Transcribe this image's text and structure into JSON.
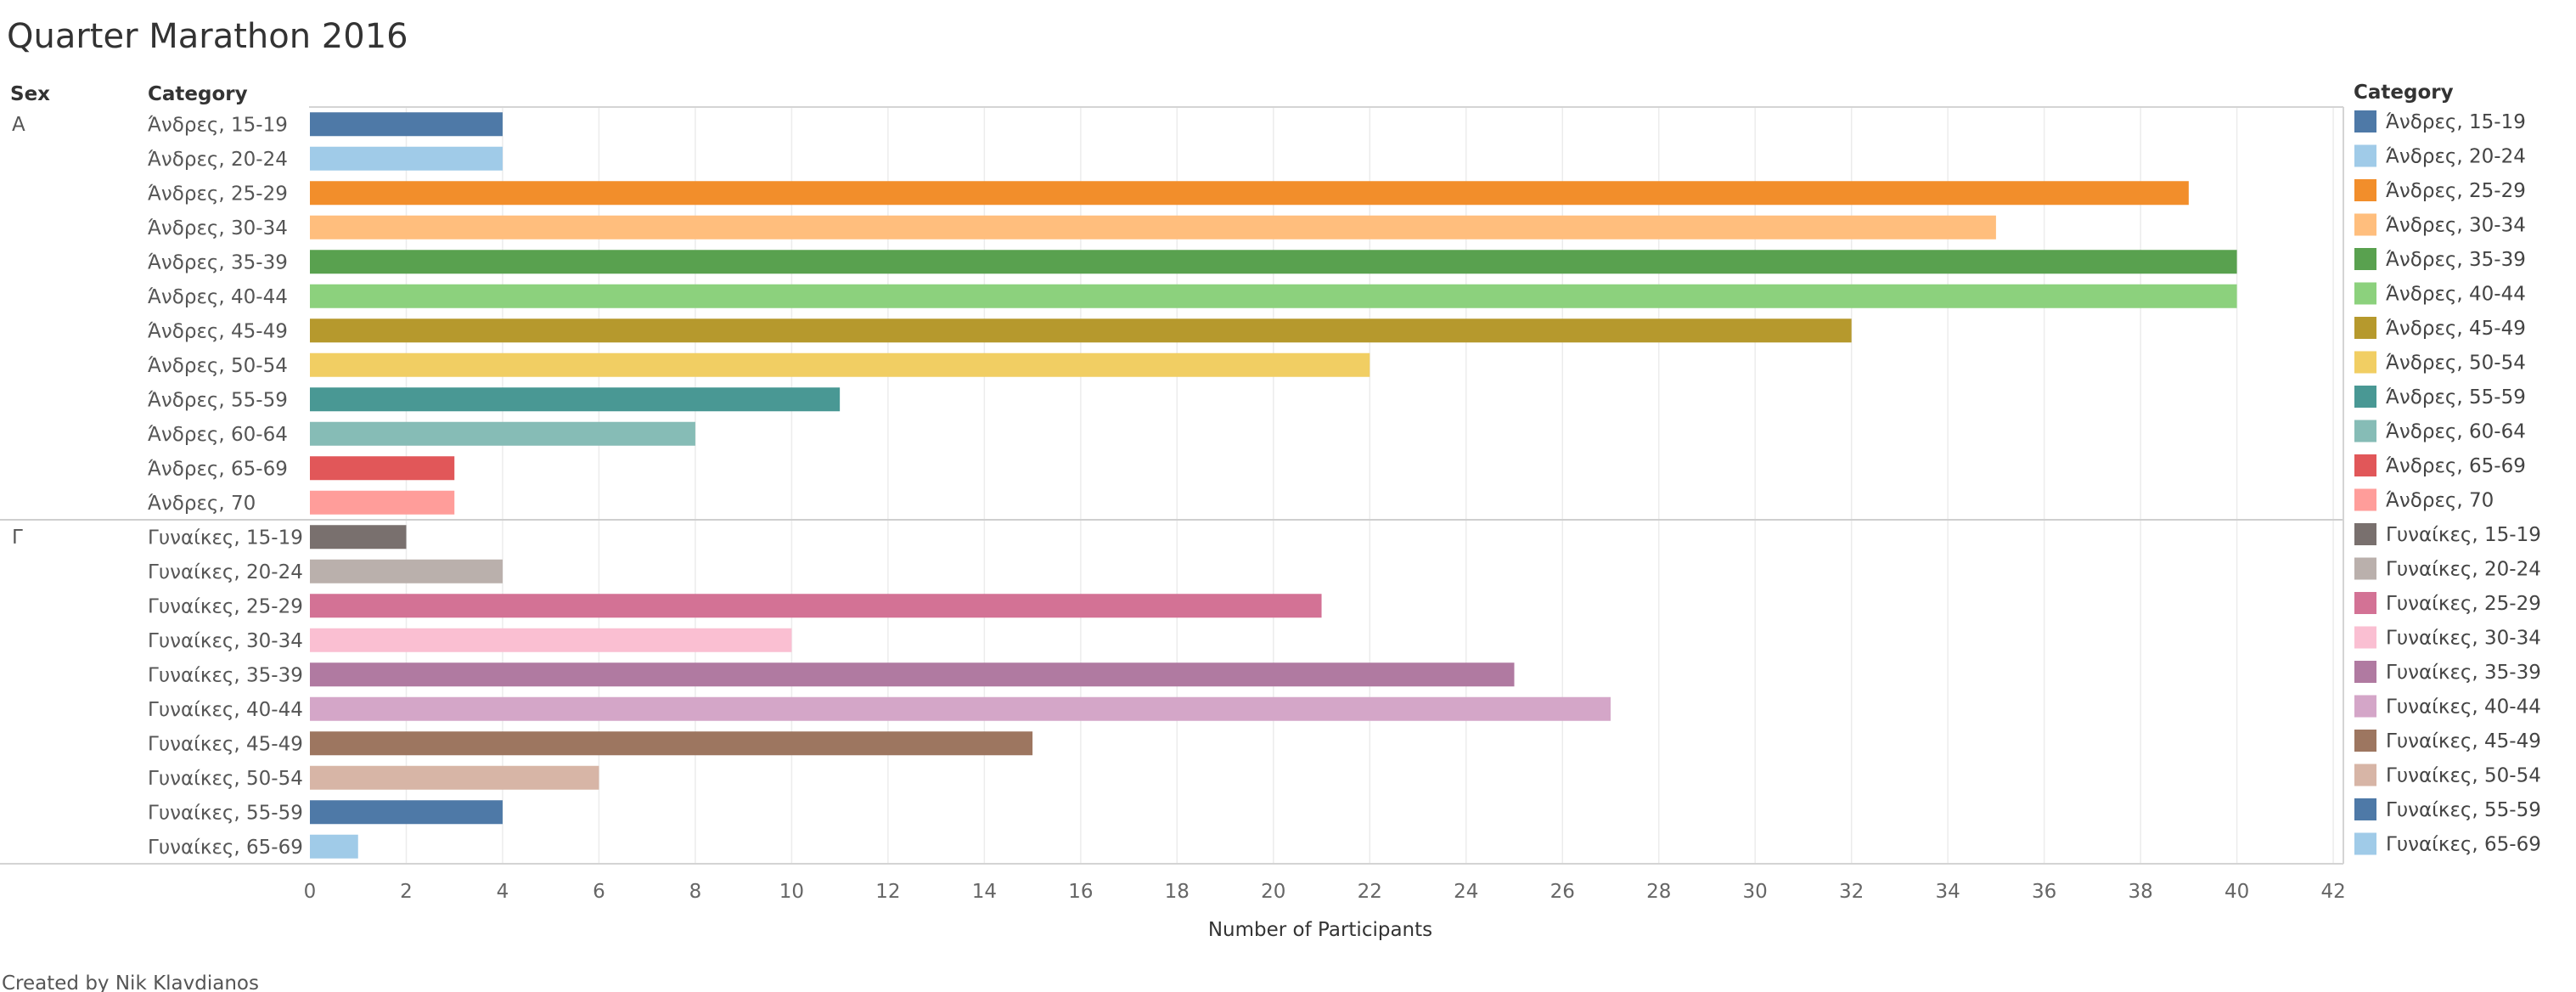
{
  "title": "Quarter Marathon 2016",
  "headers": {
    "sex": "Sex",
    "category": "Category"
  },
  "legend": {
    "title": "Category"
  },
  "credit": "Created by Nik Klavdianos",
  "chart_data": {
    "type": "bar",
    "orientation": "horizontal",
    "title": "Quarter Marathon 2016",
    "xlabel": "Number of Participants",
    "ylabel": "",
    "xlim": [
      0,
      42
    ],
    "x_ticks": [
      0,
      2,
      4,
      6,
      8,
      10,
      12,
      14,
      16,
      18,
      20,
      22,
      24,
      26,
      28,
      30,
      32,
      34,
      36,
      38,
      40,
      42
    ],
    "grid": "vertical",
    "legend_position": "right",
    "groups": [
      {
        "sex": "Α",
        "rows": [
          {
            "category": "Άνδρες, 15-19",
            "value": 4,
            "color": "#4e79a7"
          },
          {
            "category": "Άνδρες, 20-24",
            "value": 4,
            "color": "#a0cbe8"
          },
          {
            "category": "Άνδρες, 25-29",
            "value": 39,
            "color": "#f28e2b"
          },
          {
            "category": "Άνδρες, 30-34",
            "value": 35,
            "color": "#ffbe7d"
          },
          {
            "category": "Άνδρες, 35-39",
            "value": 40,
            "color": "#59a14f"
          },
          {
            "category": "Άνδρες, 40-44",
            "value": 40,
            "color": "#8cd17d"
          },
          {
            "category": "Άνδρες, 45-49",
            "value": 32,
            "color": "#b6992d"
          },
          {
            "category": "Άνδρες, 50-54",
            "value": 22,
            "color": "#f1ce63"
          },
          {
            "category": "Άνδρες, 55-59",
            "value": 11,
            "color": "#499894"
          },
          {
            "category": "Άνδρες, 60-64",
            "value": 8,
            "color": "#86bcb6"
          },
          {
            "category": "Άνδρες, 65-69",
            "value": 3,
            "color": "#e15759"
          },
          {
            "category": "Άνδρες, 70",
            "value": 3,
            "color": "#ff9d9a"
          }
        ]
      },
      {
        "sex": "Γ",
        "rows": [
          {
            "category": "Γυναίκες, 15-19",
            "value": 2,
            "color": "#79706e"
          },
          {
            "category": "Γυναίκες, 20-24",
            "value": 4,
            "color": "#bab0ac"
          },
          {
            "category": "Γυναίκες, 25-29",
            "value": 21,
            "color": "#d37295"
          },
          {
            "category": "Γυναίκες, 30-34",
            "value": 10,
            "color": "#fabfd2"
          },
          {
            "category": "Γυναίκες, 35-39",
            "value": 25,
            "color": "#b07aa1"
          },
          {
            "category": "Γυναίκες, 40-44",
            "value": 27,
            "color": "#d4a6c8"
          },
          {
            "category": "Γυναίκες, 45-49",
            "value": 15,
            "color": "#9d7660"
          },
          {
            "category": "Γυναίκες, 50-54",
            "value": 6,
            "color": "#d7b5a6"
          },
          {
            "category": "Γυναίκες, 55-59",
            "value": 4,
            "color": "#4e79a7"
          },
          {
            "category": "Γυναίκες, 65-69",
            "value": 1,
            "color": "#a0cbe8"
          }
        ]
      }
    ]
  }
}
